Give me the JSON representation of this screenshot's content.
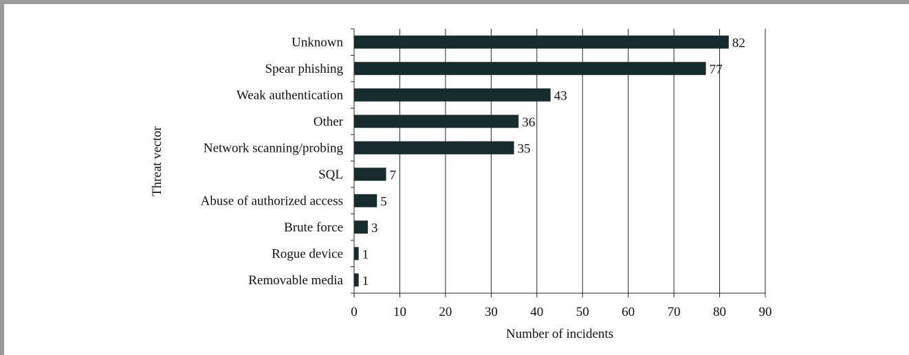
{
  "chart_data": {
    "type": "bar",
    "orientation": "horizontal",
    "categories": [
      "Unknown",
      "Spear phishing",
      "Weak authentication",
      "Other",
      "Network scanning/probing",
      "SQL",
      "Abuse of authorized access",
      "Brute force",
      "Rogue device",
      "Removable media"
    ],
    "values": [
      82,
      77,
      43,
      36,
      35,
      7,
      5,
      3,
      1,
      1
    ],
    "xlabel": "Number of incidents",
    "ylabel": "Threat vector",
    "xlim": [
      0,
      90
    ],
    "xticks": [
      0,
      10,
      20,
      30,
      40,
      50,
      60,
      70,
      80,
      90
    ],
    "grid": "vertical",
    "bar_color": "#162b2b",
    "data_labels": true
  }
}
